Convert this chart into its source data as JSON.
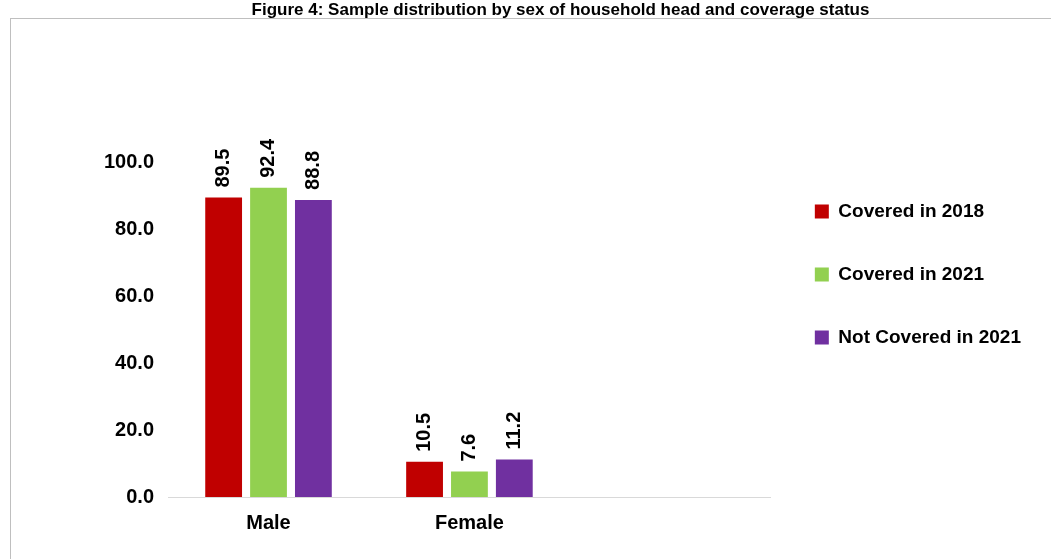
{
  "chart_data": {
    "type": "bar",
    "title": "Figure 4: Sample distribution by sex of household head and coverage status",
    "categories": [
      "Male",
      "Female",
      null
    ],
    "series": [
      {
        "name": "Covered in 2018",
        "color": "#c00000",
        "values": [
          89.5,
          10.5,
          null
        ]
      },
      {
        "name": "Covered in 2021",
        "color": "#92d050",
        "values": [
          92.4,
          7.6,
          null
        ]
      },
      {
        "name": "Not Covered in 2021",
        "color": "#7030a0",
        "values": [
          88.8,
          11.2,
          null
        ]
      }
    ],
    "ylim": [
      0,
      100
    ],
    "yticks": [
      {
        "value": 0,
        "label": "0.0"
      },
      {
        "value": 20,
        "label": "20.0"
      },
      {
        "value": 40,
        "label": "40.0"
      },
      {
        "value": 60,
        "label": "60.0"
      },
      {
        "value": 80,
        "label": "80.0"
      },
      {
        "value": 100,
        "label": "100.0"
      }
    ],
    "grid": false,
    "legend": "right",
    "data_labels": true
  }
}
